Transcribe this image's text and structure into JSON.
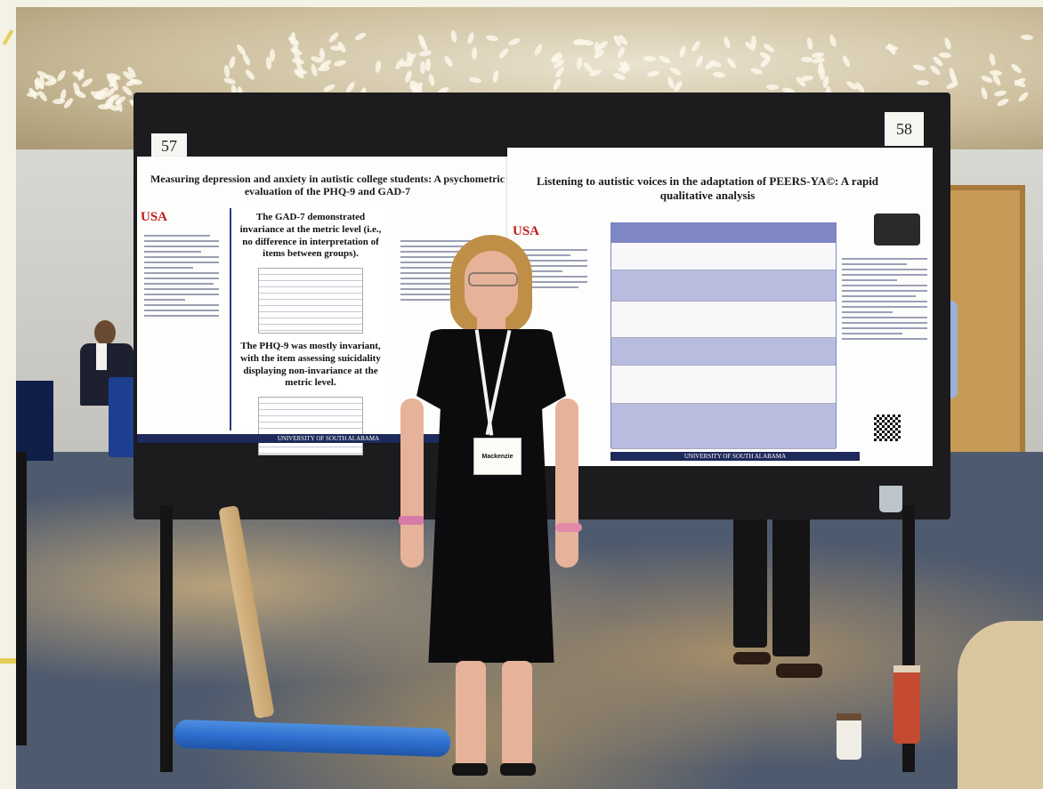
{
  "poster_left": {
    "number": "57",
    "title": "Measuring depression and anxiety in autistic college students: A psychometric evaluation of the PHQ-9 and GAD-7",
    "finding_1": "The GAD-7 demonstrated invariance at the metric level (i.e., no difference in interpretation of items between groups).",
    "finding_2": "The PHQ-9 was mostly invariant, with the item assessing suicidality displaying non-invariance at the metric level.",
    "footer": "UNIVERSITY OF SOUTH ALABAMA",
    "logo": "USA"
  },
  "poster_right": {
    "number": "58",
    "title": "Listening to autistic voices in the adaptation of PEERS-YA©: A rapid qualitative analysis",
    "footer": "UNIVERSITY OF SOUTH ALABAMA",
    "logo": "USA"
  },
  "badge_name": "Mackenzie",
  "colors": {
    "poster_navy": "#1f2a5c",
    "table_header": "#7e86c4",
    "dress": "#0c0c0e",
    "tube_blue": "#2f6fd0"
  }
}
